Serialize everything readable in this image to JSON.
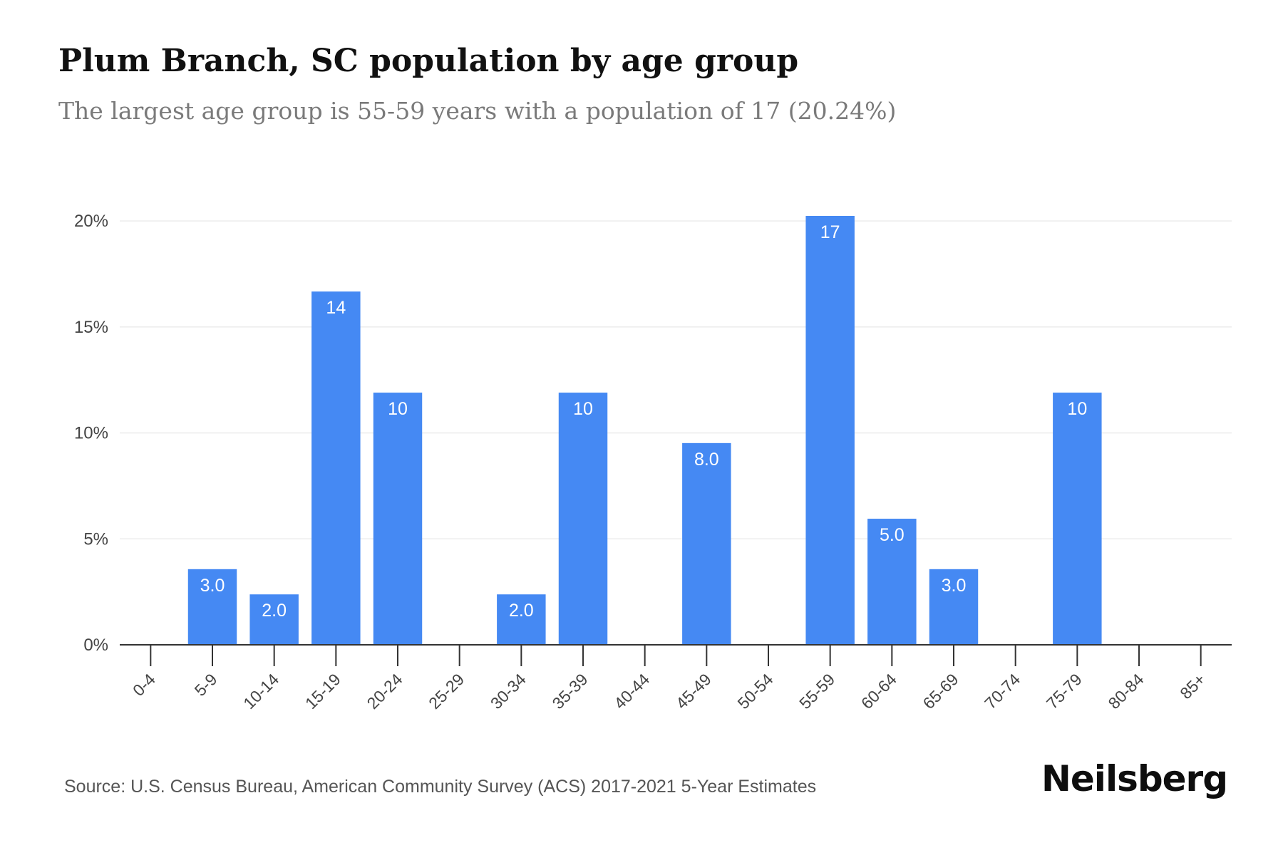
{
  "header": {
    "title": "Plum Branch, SC population by age group",
    "subtitle": "The largest age group is 55-59 years with a population of 17 (20.24%)"
  },
  "footer": {
    "source": "Source: U.S. Census Bureau, American Community Survey (ACS) 2017-2021 5-Year Estimates",
    "brand": "Neilsberg"
  },
  "colors": {
    "bar": "#4589f3",
    "bar_label": "#ffffff",
    "axis": "#333333",
    "grid": "#ececec",
    "tick_text": "#444444"
  },
  "chart_data": {
    "type": "bar",
    "categories": [
      "0-4",
      "5-9",
      "10-14",
      "15-19",
      "20-24",
      "25-29",
      "30-34",
      "35-39",
      "40-44",
      "45-49",
      "50-54",
      "55-59",
      "60-64",
      "65-69",
      "70-74",
      "75-79",
      "80-84",
      "85+"
    ],
    "values": [
      0,
      3.57,
      2.38,
      16.67,
      11.9,
      0,
      2.38,
      11.9,
      0,
      9.52,
      0,
      20.24,
      5.95,
      3.57,
      0,
      11.9,
      0,
      0
    ],
    "data_labels": [
      "",
      "3.0",
      "2.0",
      "14",
      "10",
      "",
      "2.0",
      "10",
      "",
      "8.0",
      "",
      "17",
      "5.0",
      "3.0",
      "",
      "10",
      "",
      ""
    ],
    "ylim": [
      0,
      20.24
    ],
    "yticks": [
      0,
      5,
      10,
      15,
      20
    ],
    "ytick_labels": [
      "0%",
      "5%",
      "10%",
      "15%",
      "20%"
    ],
    "grid": true,
    "legend": "none"
  }
}
